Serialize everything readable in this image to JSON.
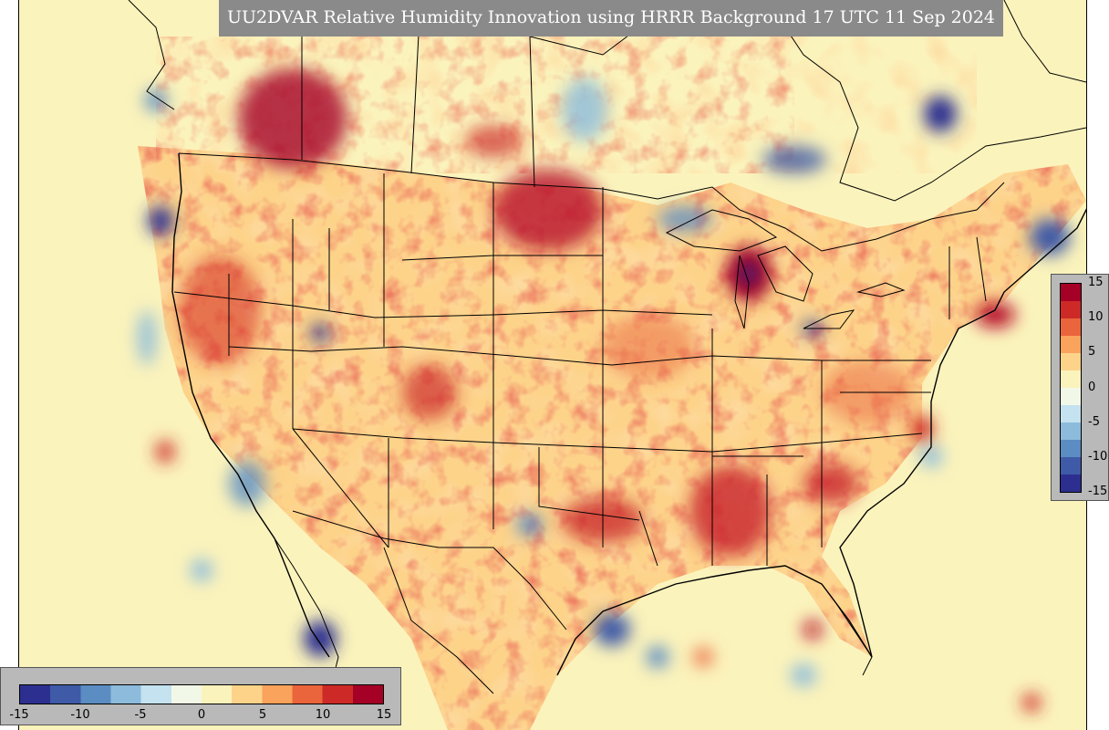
{
  "title": "UU2DVAR Relative Humidity Innovation using HRRR Background 17 UTC 11 Sep 2024",
  "colormap": {
    "name": "RdYlBu_r",
    "min": -15,
    "max": 15,
    "colors": [
      "#2c2f8f",
      "#3f5aa6",
      "#5b8cc2",
      "#8cbbdc",
      "#c4e2ef",
      "#f2f8e8",
      "#fbf3bc",
      "#fdd38a",
      "#f9a35c",
      "#ea643c",
      "#cd2a27",
      "#a50026"
    ]
  },
  "vertical_colorbar": {
    "ticks": [
      "15",
      "10",
      "5",
      "0",
      "-5",
      "-10",
      "-15"
    ]
  },
  "horizontal_colorbar": {
    "ticks": [
      "-15",
      "-10",
      "-5",
      "0",
      "5",
      "10",
      "15"
    ]
  },
  "map": {
    "background_color": "#fbf3bc",
    "border_color": "#000000",
    "dominant_anomaly": "positive (red) over most of the continental interior"
  }
}
